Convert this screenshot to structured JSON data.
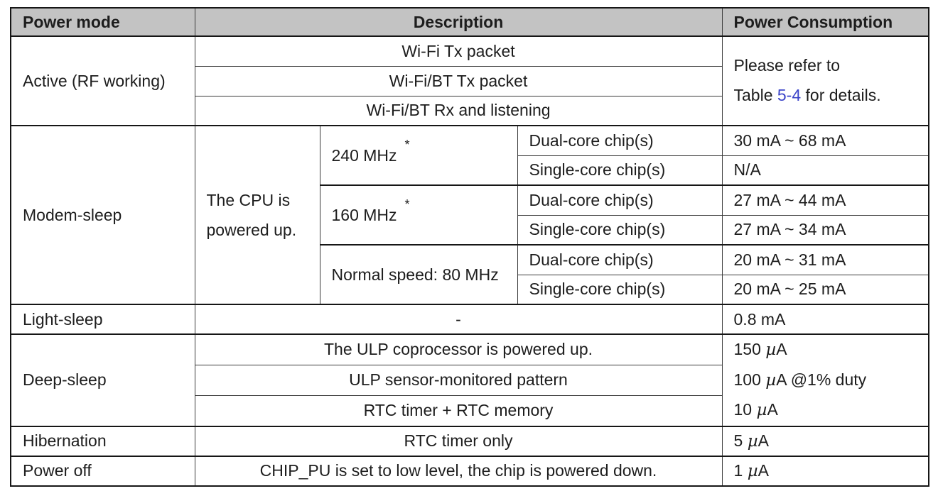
{
  "header": {
    "power_mode": "Power mode",
    "description": "Description",
    "power_consumption": "Power Consumption"
  },
  "active": {
    "mode": "Active (RF working)",
    "rows": [
      "Wi-Fi Tx packet",
      "Wi-Fi/BT Tx packet",
      "Wi-Fi/BT Rx and listening"
    ],
    "consumption": {
      "line1": "Please refer to",
      "line2_pre": "Table ",
      "link": "5-4",
      "line2_post": " for details."
    }
  },
  "modem": {
    "mode": "Modem-sleep",
    "cpu": "The CPU is powered up.",
    "groups": [
      {
        "freq": "240 MHz",
        "marker": "*",
        "rows": [
          {
            "core": "Dual-core chip(s)",
            "value": "30 mA ~ 68 mA"
          },
          {
            "core": "Single-core chip(s)",
            "value": "N/A"
          }
        ]
      },
      {
        "freq": "160 MHz",
        "marker": "*",
        "rows": [
          {
            "core": "Dual-core chip(s)",
            "value": "27 mA ~ 44 mA"
          },
          {
            "core": "Single-core chip(s)",
            "value": "27 mA ~ 34 mA"
          }
        ]
      },
      {
        "freq": "Normal speed: 80 MHz",
        "marker": "",
        "rows": [
          {
            "core": "Dual-core chip(s)",
            "value": "20 mA ~ 31 mA"
          },
          {
            "core": "Single-core chip(s)",
            "value": "20 mA ~ 25 mA"
          }
        ]
      }
    ]
  },
  "light_sleep": {
    "mode": "Light-sleep",
    "description": "-",
    "value": "0.8 mA"
  },
  "deep_sleep": {
    "mode": "Deep-sleep",
    "rows": [
      "The ULP coprocessor is powered up.",
      "ULP sensor-monitored pattern",
      "RTC timer + RTC memory"
    ],
    "consumption": [
      {
        "num": "150 ",
        "unit": "A"
      },
      {
        "num": "100 ",
        "unit": "A @1% duty"
      },
      {
        "num": "10 ",
        "unit": "A"
      }
    ]
  },
  "hibernation": {
    "mode": "Hibernation",
    "description": "RTC timer only",
    "value": {
      "num": "5 ",
      "unit": "A"
    }
  },
  "power_off": {
    "mode": "Power off",
    "description": "CHIP_PU is set to low level, the chip is powered down.",
    "value": {
      "num": "1 ",
      "unit": "A"
    }
  },
  "symbols": {
    "mu": "µ"
  },
  "colors": {
    "header_bg": "#c3c3c3",
    "link": "#3b44c8",
    "text": "#1d1d1d",
    "thin_border": "#3a3a3a",
    "thick_border": "#161616"
  }
}
